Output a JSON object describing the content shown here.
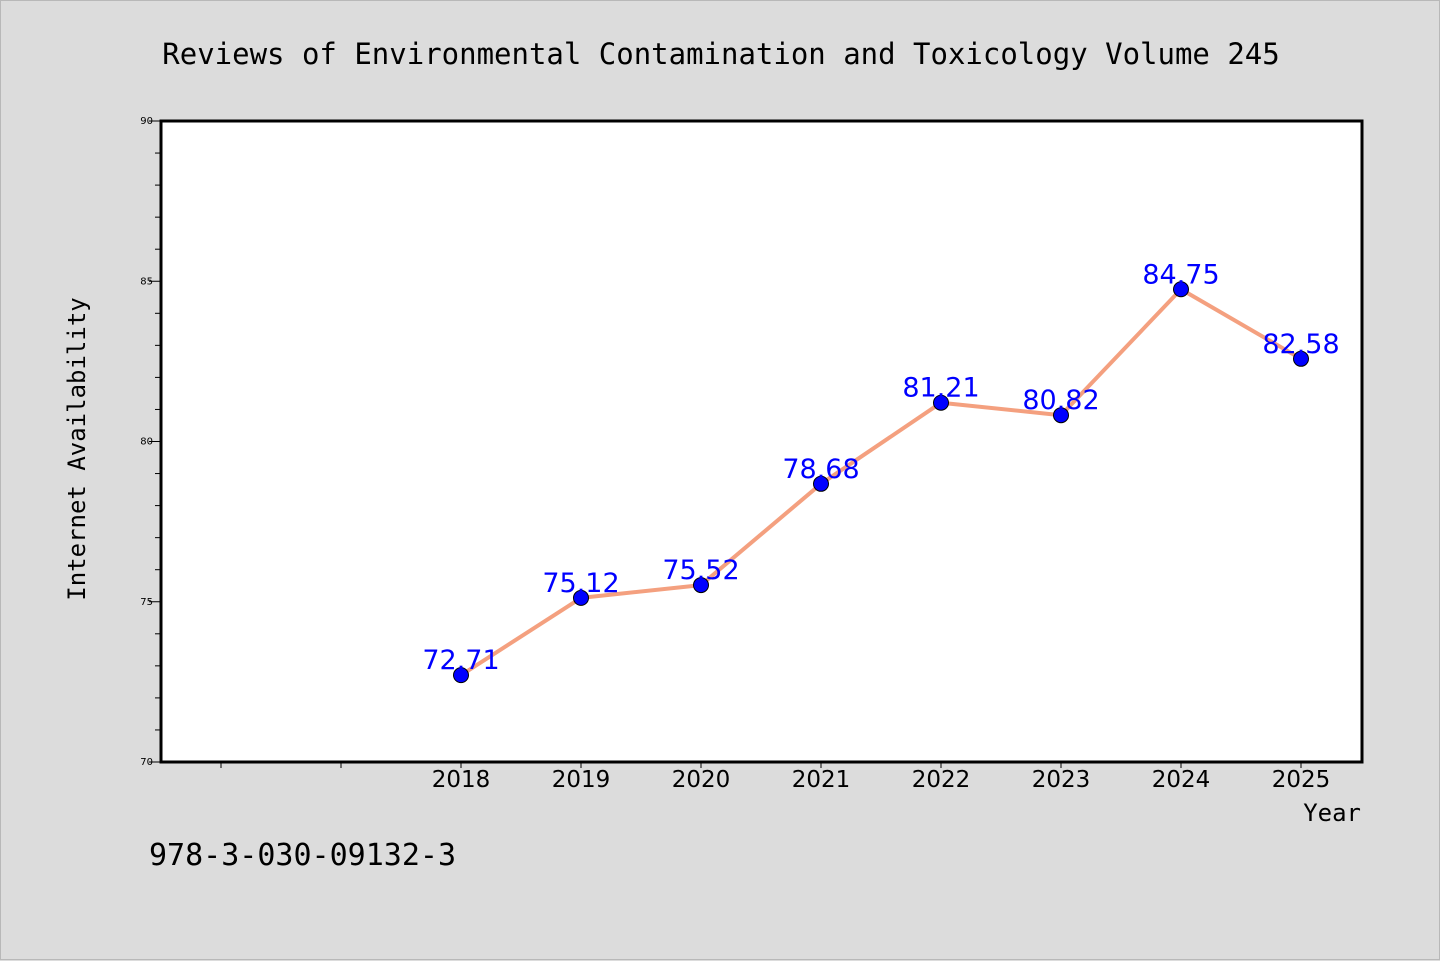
{
  "chart_data": {
    "type": "line",
    "title": "Reviews of Environmental Contamination and Toxicology Volume 245",
    "xlabel": "Year",
    "ylabel": "Internet Availability",
    "categories": [
      "2018",
      "2019",
      "2020",
      "2021",
      "2022",
      "2023",
      "2024",
      "2025"
    ],
    "series": [
      {
        "values": [
          72.71,
          75.12,
          75.52,
          78.68,
          81.21,
          80.82,
          84.75,
          82.58
        ],
        "line_color": "#f4a07f",
        "marker_color": "#0000ff"
      }
    ],
    "data_labels": [
      "72.71",
      "75.12",
      "75.52",
      "78.68",
      "81.21",
      "80.82",
      "84.75",
      "82.58"
    ],
    "y_ticks": [
      70,
      75,
      80,
      85,
      90
    ],
    "ylim": [
      70,
      90
    ],
    "grid": false,
    "legend": "none",
    "label_color": "#0000ff"
  },
  "footer": {
    "isbn": "978-3-030-09132-3"
  },
  "colors": {
    "background": "#dcdcdc",
    "plot_background": "#ffffff",
    "axis": "#000000"
  }
}
